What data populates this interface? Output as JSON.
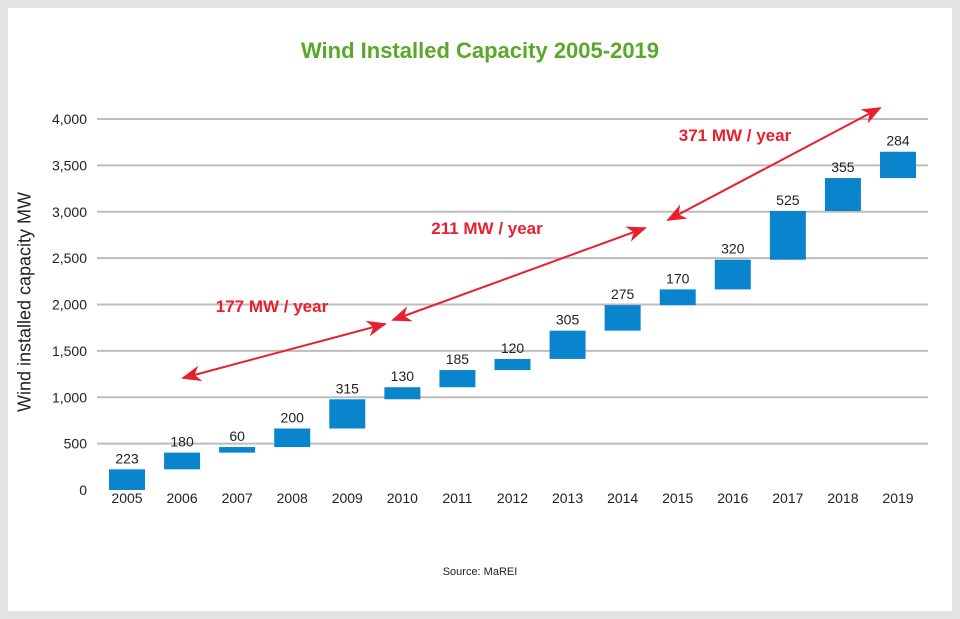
{
  "chart_data": {
    "type": "bar",
    "subtype": "waterfall",
    "title": "Wind Installed Capacity 2005-2019",
    "ylabel": "Wind installed capacity MW",
    "xlabel": "",
    "source": "Source: MaREI",
    "categories": [
      "2005",
      "2006",
      "2007",
      "2008",
      "2009",
      "2010",
      "2011",
      "2012",
      "2013",
      "2014",
      "2015",
      "2016",
      "2017",
      "2018",
      "2019"
    ],
    "values": [
      223,
      180,
      60,
      200,
      315,
      130,
      185,
      120,
      305,
      275,
      170,
      320,
      525,
      355,
      284
    ],
    "yticks": [
      "0",
      "500",
      "1,000",
      "1,500",
      "2,000",
      "2,500",
      "3,000",
      "3,500",
      "4,000"
    ],
    "ylim": [
      0,
      4000
    ],
    "grid": true,
    "bar_color": "#0a84cc",
    "annotations": [
      {
        "text": "177 MW / year",
        "from": "2006",
        "to": "2010"
      },
      {
        "text": "211 MW / year",
        "from": "2010",
        "to": "2015"
      },
      {
        "text": "371 MW / year",
        "from": "2015",
        "to": "2019"
      }
    ],
    "annotation_color": "#e8202e",
    "title_color": "#5aa82a"
  }
}
